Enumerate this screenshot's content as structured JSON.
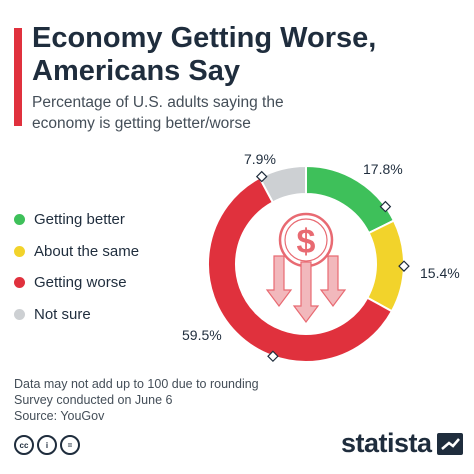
{
  "header": {
    "title_line1": "Economy Getting Worse,",
    "title_line2": "Americans Say",
    "subtitle_line1": "Percentage of U.S. adults saying the",
    "subtitle_line2": "economy is getting better/worse"
  },
  "colors": {
    "accent": "#e0313d",
    "better": "#3ec05a",
    "same": "#f2d32b",
    "worse": "#e0313d",
    "not_sure": "#cdd0d3",
    "icon": "#e86a72",
    "text": "#1f2d3d"
  },
  "legend": [
    {
      "label": "Getting better",
      "color": "#3ec05a"
    },
    {
      "label": "About the same",
      "color": "#f2d32b"
    },
    {
      "label": "Getting worse",
      "color": "#e0313d"
    },
    {
      "label": "Not sure",
      "color": "#cdd0d3"
    }
  ],
  "chart_data": {
    "type": "pie",
    "variant": "donut",
    "categories": [
      "Getting better",
      "About the same",
      "Getting worse",
      "Not sure"
    ],
    "values": [
      17.8,
      15.4,
      59.5,
      7.9
    ],
    "labels": [
      "17.8%",
      "15.4%",
      "59.5%",
      "7.9%"
    ],
    "unit": "%",
    "center_icon": "dollar-down-arrows-icon"
  },
  "footnotes": {
    "line1": "Data may not add up to 100 due to rounding",
    "line2": "Survey conducted on June 6",
    "line3": "Source: YouGov"
  },
  "brand": {
    "name": "statista",
    "license_icons": [
      "cc-icon",
      "attribution-icon",
      "no-derivatives-icon"
    ],
    "license_texts": [
      "cc",
      "i",
      "="
    ]
  }
}
